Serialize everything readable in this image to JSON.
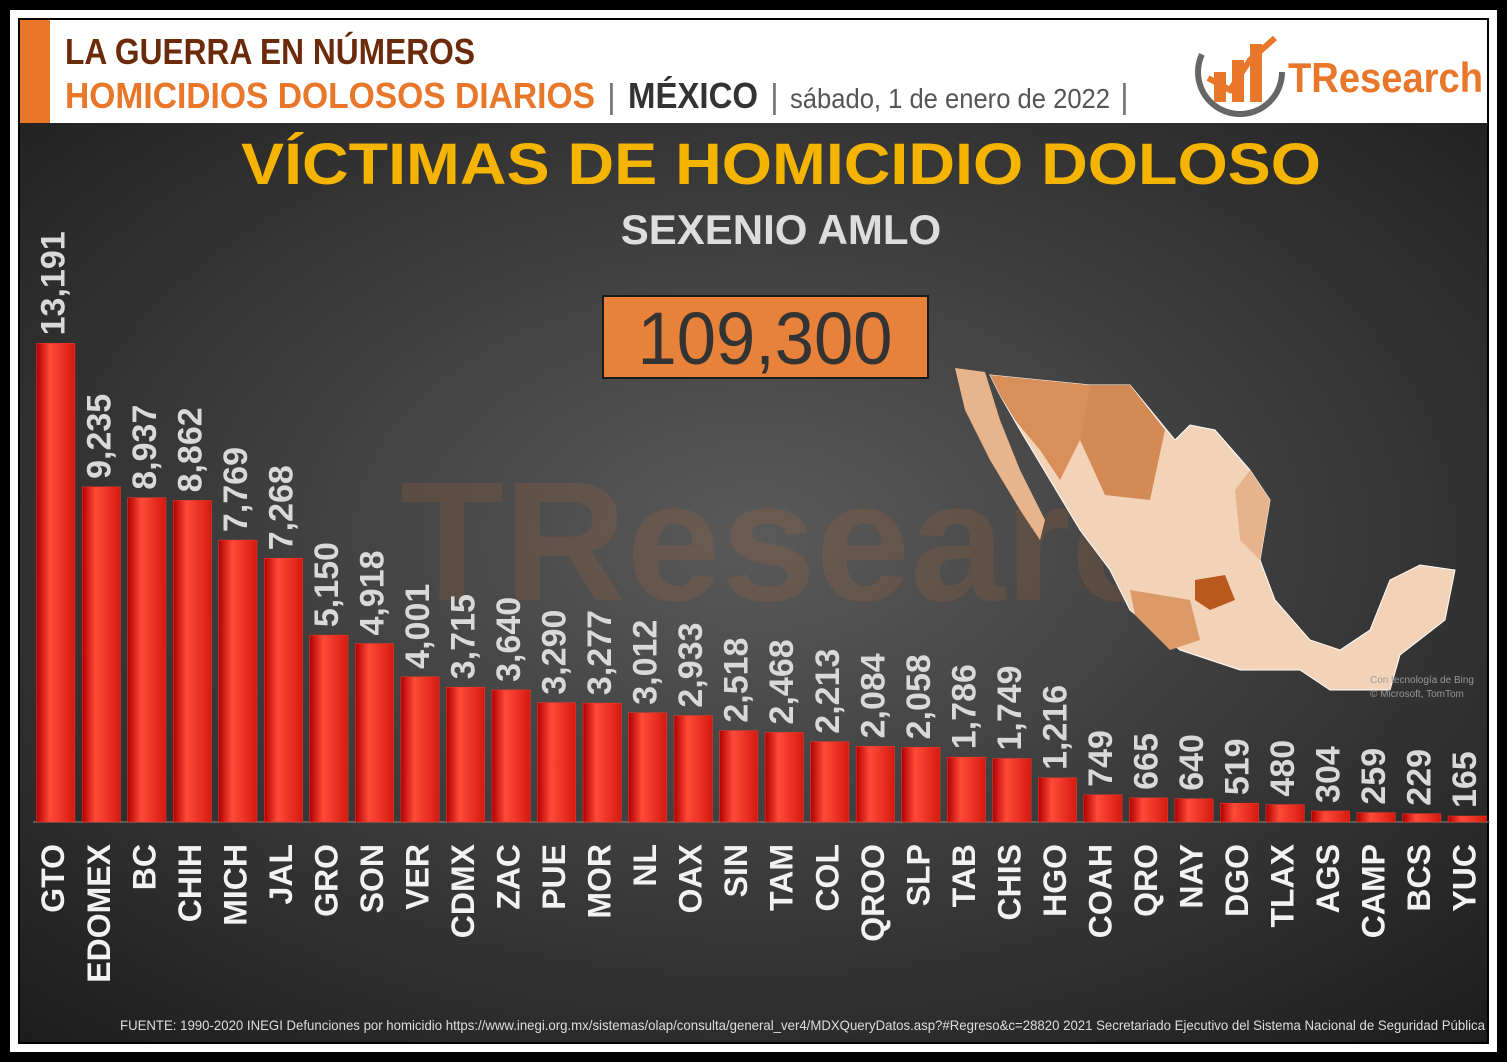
{
  "header": {
    "title": "LA GUERRA EN NÚMEROS",
    "subtitle": "HOMICIDIOS DOLOSOS DIARIOS",
    "separator": "|",
    "country": "MÉXICO",
    "date": "sábado, 1 de enero de 2022"
  },
  "logo": {
    "text": "TResearch"
  },
  "map_credit": [
    "Con tecnología de Bing",
    "© Microsoft, TomTom"
  ],
  "footer": {
    "source": "FUENTE: 1990-2020 INEGI Defunciones por homicidio https://www.inegi.org.mx/sistemas/olap/consulta/general_ver4/MDXQueryDatos.asp?#Regreso&c=28820   2021 Secretariado Ejecutivo del Sistema Nacional de Seguridad Pública"
  },
  "chart_data": {
    "type": "bar",
    "title": "VÍCTIMAS DE HOMICIDIO DOLOSO",
    "subtitle": "SEXENIO AMLO",
    "total": "109,300",
    "categories": [
      "GTO",
      "EDOMEX",
      "BC",
      "CHIH",
      "MICH",
      "JAL",
      "GRO",
      "SON",
      "VER",
      "CDMX",
      "ZAC",
      "PUE",
      "MOR",
      "NL",
      "OAX",
      "SIN",
      "TAM",
      "COL",
      "QROO",
      "SLP",
      "TAB",
      "CHIS",
      "HGO",
      "COAH",
      "QRO",
      "NAY",
      "DGO",
      "TLAX",
      "AGS",
      "CAMP",
      "BCS",
      "YUC"
    ],
    "values": [
      13191,
      9235,
      8937,
      8862,
      7769,
      7268,
      5150,
      4918,
      4001,
      3715,
      3640,
      3290,
      3277,
      3012,
      2933,
      2518,
      2468,
      2213,
      2084,
      2058,
      1786,
      1749,
      1216,
      749,
      665,
      640,
      519,
      480,
      304,
      259,
      229,
      165
    ],
    "value_labels": [
      "13,191",
      "9,235",
      "8,937",
      "8,862",
      "7,769",
      "7,268",
      "5,150",
      "4,918",
      "4,001",
      "3,715",
      "3,640",
      "3,290",
      "3,277",
      "3,012",
      "2,933",
      "2,518",
      "2,468",
      "2,213",
      "2,084",
      "2,058",
      "1,786",
      "1,749",
      "1,216",
      "749",
      "665",
      "640",
      "519",
      "480",
      "304",
      "259",
      "229",
      "165"
    ],
    "color": "#ff3a2a",
    "ylim": [
      0,
      14000
    ]
  }
}
